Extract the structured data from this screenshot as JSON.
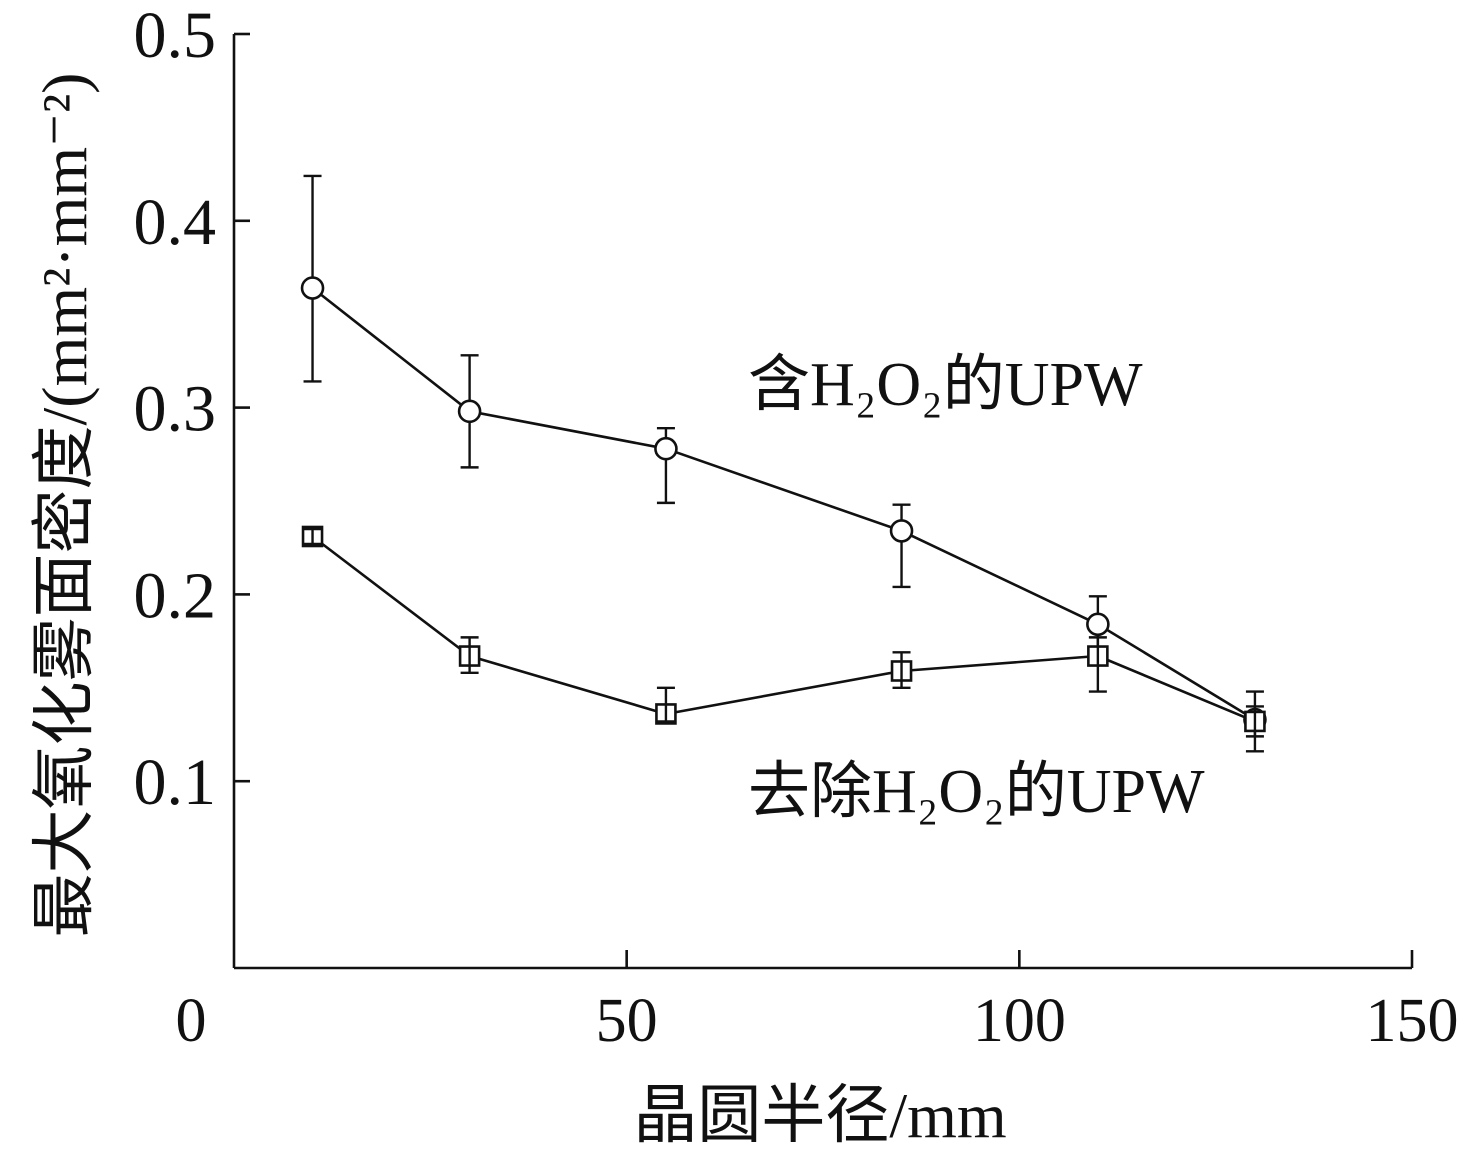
{
  "chart_data": {
    "type": "line",
    "xlabel": "晶圆半径/mm",
    "ylabel": "最大氧化雾面密度/(mm²·mm⁻²)",
    "xlim": [
      0,
      150
    ],
    "ylim": [
      0,
      0.5
    ],
    "xticks": [
      0,
      50,
      100,
      150
    ],
    "yticks": [
      0.1,
      0.2,
      0.3,
      0.4,
      0.5
    ],
    "grid": false,
    "series": [
      {
        "name": "含H₂O₂的UPW",
        "marker": "circle",
        "color": "#111111",
        "x": [
          10,
          30,
          55,
          85,
          110,
          130
        ],
        "y": [
          0.364,
          0.298,
          0.278,
          0.234,
          0.184,
          0.133
        ],
        "y_lower": [
          0.314,
          0.268,
          0.249,
          0.204,
          0.17,
          0.116
        ],
        "y_upper": [
          0.424,
          0.328,
          0.289,
          0.248,
          0.199,
          0.148
        ]
      },
      {
        "name": "去除H₂O₂的UPW",
        "marker": "square",
        "color": "#111111",
        "x": [
          10,
          30,
          55,
          85,
          110,
          130
        ],
        "y": [
          0.231,
          0.167,
          0.136,
          0.159,
          0.167,
          0.132
        ],
        "y_lower": [
          0.227,
          0.158,
          0.132,
          0.15,
          0.148,
          0.124
        ],
        "y_upper": [
          0.235,
          0.177,
          0.15,
          0.169,
          0.177,
          0.14
        ]
      }
    ]
  }
}
